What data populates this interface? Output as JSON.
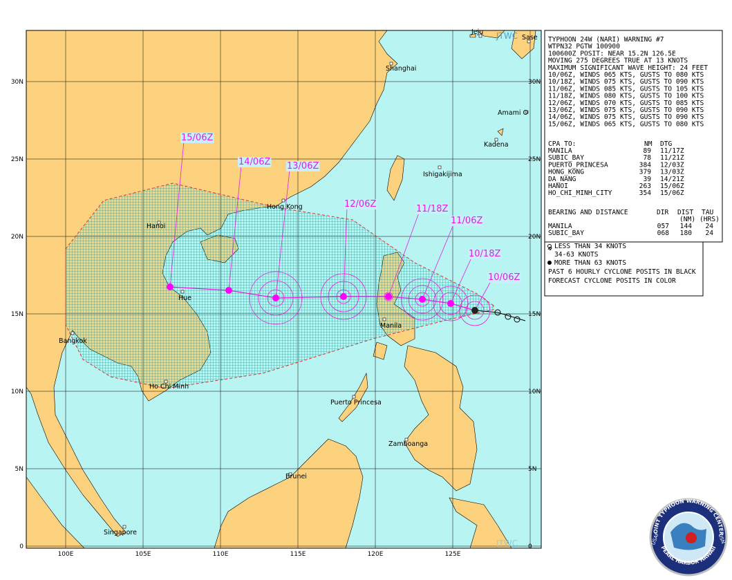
{
  "map": {
    "lat_labels": [
      "30N",
      "25N",
      "20N",
      "15N",
      "10N",
      "5N",
      "0"
    ],
    "lon_labels": [
      "100E",
      "105E",
      "110E",
      "115E",
      "120E",
      "125E"
    ],
    "places": [
      "Jeju",
      "Sase",
      "Shanghai",
      "Amami O",
      "Kadena",
      "Ishigakijima",
      "Hong Kong",
      "Hanoi",
      "Hue",
      "Bangkok",
      "Ho Chi Minh",
      "Manila",
      "Puerto Princesa",
      "Zamboanga",
      "Brunei",
      "Singapore"
    ],
    "forecast_labels": [
      "15/06Z",
      "14/06Z",
      "13/06Z",
      "12/06Z",
      "11/18Z",
      "11/06Z",
      "10/18Z",
      "10/06Z"
    ],
    "watermark_top": "JTWC",
    "watermark_bottom": "JTWC"
  },
  "warning": {
    "lines": [
      "TYPHOON 24W (NARI) WARNING #7",
      "WTPN32 PGTW 100900",
      "100600Z POSIT: NEAR 15.2N 126.5E",
      "MOVING 275 DEGREES TRUE AT 13 KNOTS",
      "MAXIMUM SIGNIFICANT WAVE HEIGHT: 24 FEET",
      "10/06Z, WINDS 065 KTS, GUSTS TO 080 KTS",
      "10/18Z, WINDS 075 KTS, GUSTS TO 090 KTS",
      "11/06Z, WINDS 085 KTS, GUSTS TO 105 KTS",
      "11/18Z, WINDS 080 KTS, GUSTS TO 100 KTS",
      "12/06Z, WINDS 070 KTS, GUSTS TO 085 KTS",
      "13/06Z, WINDS 075 KTS, GUSTS TO 090 KTS",
      "14/06Z, WINDS 075 KTS, GUSTS TO 090 KTS",
      "15/06Z, WINDS 065 KTS, GUSTS TO 080 KTS"
    ]
  },
  "cpa": {
    "header": [
      "CPA TO:",
      "NM",
      "DTG"
    ],
    "rows": [
      [
        "MANILA",
        "89",
        "11/17Z"
      ],
      [
        "SUBIC_BAY",
        "78",
        "11/21Z"
      ],
      [
        "PUERTO_PRINCESA",
        "384",
        "12/03Z"
      ],
      [
        "HONG_KONG",
        "379",
        "13/03Z"
      ],
      [
        "DA_NANG",
        "39",
        "14/21Z"
      ],
      [
        "HANOI",
        "263",
        "15/06Z"
      ],
      [
        "HO_CHI_MINH_CITY",
        "354",
        "15/06Z"
      ]
    ]
  },
  "bearing": {
    "header": [
      "BEARING AND DISTANCE",
      "DIR",
      "DIST",
      "TAU"
    ],
    "units": [
      "(NM)",
      "(HRS)"
    ],
    "rows": [
      [
        "MANILA",
        "057",
        "144",
        "24"
      ],
      [
        "SUBIC_BAY",
        "068",
        "180",
        "24"
      ]
    ]
  },
  "legend": {
    "lines": [
      "LESS THAN 34 KNOTS",
      "34-63 KNOTS",
      "MORE THAN 63 KNOTS",
      "PAST 6 HOURLY CYCLONE POSITS IN BLACK",
      "FORECAST CYCLONE POSITS IN COLOR"
    ]
  },
  "logo": {
    "top": "JOINT TYPHOON WARNING CENTER",
    "bottom": "PEARL HARBOR HAWAII",
    "left": "USAF",
    "right": "USN"
  }
}
